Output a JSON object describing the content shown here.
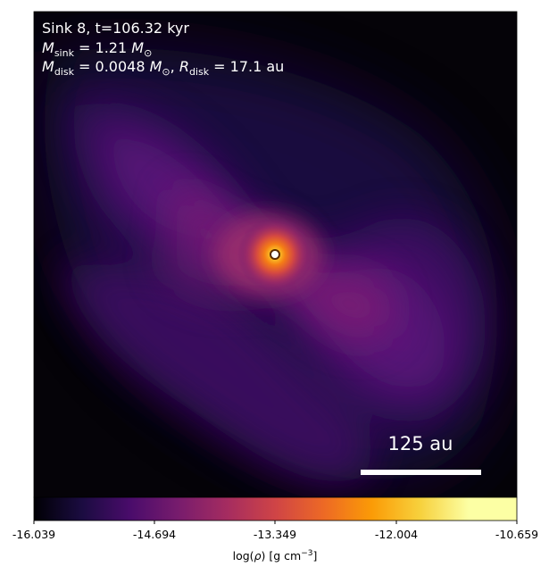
{
  "annotation": {
    "sink_line": "Sink 8, t=106.32 kyr",
    "msink_symbol": "M",
    "msink_sub": "sink",
    "msink_value": " = 1.21 ",
    "msink_unit": "M",
    "msink_unit_sub": "⊙",
    "mdisk_symbol": "M",
    "mdisk_sub": "disk",
    "mdisk_value": " = 0.0048 ",
    "mdisk_unit": "M",
    "mdisk_unit_sub": "⊙",
    "rdisk_sep": ", ",
    "rdisk_symbol": "R",
    "rdisk_sub": "disk",
    "rdisk_value": " = 17.1 au"
  },
  "scale_bar": {
    "label": "125 au"
  },
  "colorbar": {
    "colormap": "inferno-like",
    "min": -16.039,
    "max": -10.659,
    "ticks": [
      "-16.039",
      "-14.694",
      "-13.349",
      "-12.004",
      "-10.659"
    ],
    "label_prefix": "log(",
    "label_rho": "ρ",
    "label_mid": ") [g cm",
    "label_exp": "−3",
    "label_suffix": "]"
  },
  "colors": {
    "background": "#050308",
    "text": "#ffffff",
    "sink_marker_fill": "#ffffff",
    "sink_marker_stroke": "#5a2a00"
  }
}
